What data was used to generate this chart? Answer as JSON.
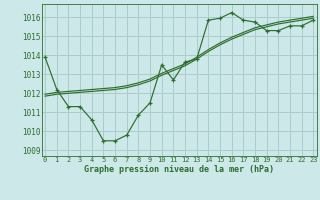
{
  "title": "Graphe pression niveau de la mer (hPa)",
  "bg_color": "#cce8e8",
  "grid_color": "#aacccc",
  "line_color": "#2d6e2d",
  "xlim": [
    -0.3,
    23.3
  ],
  "ylim": [
    1008.7,
    1016.7
  ],
  "yticks": [
    1009,
    1010,
    1011,
    1012,
    1013,
    1014,
    1015,
    1016
  ],
  "xticks": [
    0,
    1,
    2,
    3,
    4,
    5,
    6,
    7,
    8,
    9,
    10,
    11,
    12,
    13,
    14,
    15,
    16,
    17,
    18,
    19,
    20,
    21,
    22,
    23
  ],
  "curve1_x": [
    0,
    1,
    2,
    3,
    4,
    5,
    6,
    7,
    8,
    9,
    10,
    11,
    12,
    13,
    14,
    15,
    16,
    17,
    18,
    19,
    20,
    21,
    22,
    23
  ],
  "curve1_y": [
    1013.9,
    1012.2,
    1011.3,
    1011.3,
    1010.6,
    1009.5,
    1009.5,
    1009.8,
    1010.85,
    1011.5,
    1013.5,
    1012.7,
    1013.65,
    1013.8,
    1015.85,
    1015.95,
    1016.25,
    1015.85,
    1015.75,
    1015.3,
    1015.3,
    1015.55,
    1015.55,
    1015.85
  ],
  "curve2_x": [
    0,
    1,
    2,
    3,
    4,
    5,
    6,
    7,
    8,
    9,
    10,
    11,
    12,
    13,
    14,
    15,
    16,
    17,
    18,
    19,
    20,
    21,
    22,
    23
  ],
  "curve2_y": [
    1011.95,
    1012.05,
    1012.1,
    1012.15,
    1012.2,
    1012.25,
    1012.3,
    1012.4,
    1012.55,
    1012.75,
    1013.05,
    1013.3,
    1013.55,
    1013.9,
    1014.3,
    1014.65,
    1014.95,
    1015.2,
    1015.45,
    1015.6,
    1015.75,
    1015.85,
    1015.95,
    1016.05
  ],
  "curve3_x": [
    0,
    1,
    2,
    3,
    4,
    5,
    6,
    7,
    8,
    9,
    10,
    11,
    12,
    13,
    14,
    15,
    16,
    17,
    18,
    19,
    20,
    21,
    22,
    23
  ],
  "curve3_y": [
    1011.85,
    1011.95,
    1012.0,
    1012.05,
    1012.1,
    1012.15,
    1012.2,
    1012.3,
    1012.45,
    1012.65,
    1012.95,
    1013.2,
    1013.45,
    1013.8,
    1014.2,
    1014.55,
    1014.85,
    1015.1,
    1015.35,
    1015.5,
    1015.65,
    1015.75,
    1015.85,
    1015.95
  ]
}
